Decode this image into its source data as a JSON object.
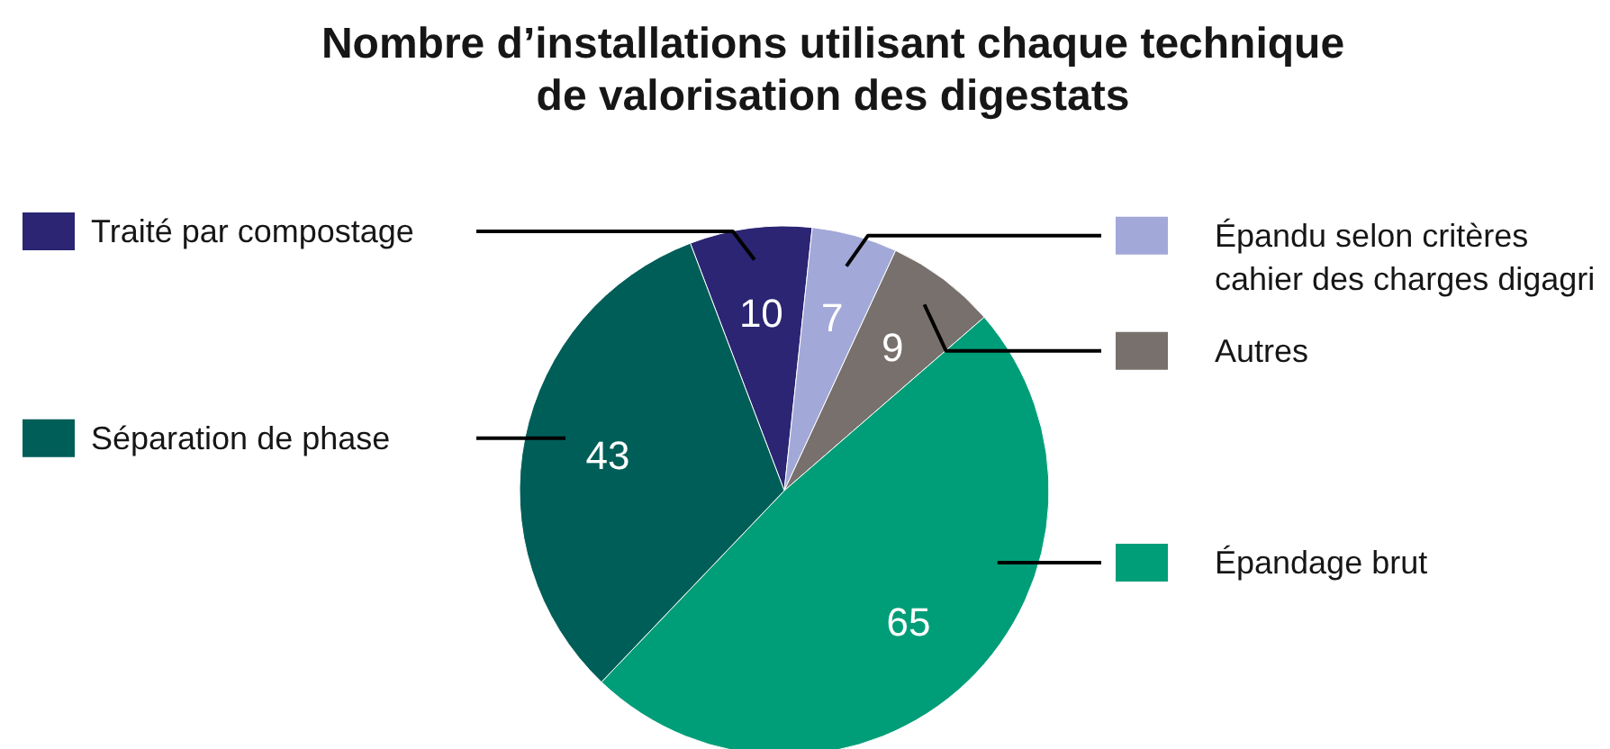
{
  "chart_data": {
    "type": "pie",
    "title": "Nombre d’installations utilisant chaque technique de valorisation des digestats",
    "categories": [
      "Traité par compostage",
      "Épandu selon critères cahier des charges digagri",
      "Autres",
      "Épandage brut",
      "Séparation de phase"
    ],
    "values": [
      10,
      7,
      9,
      65,
      43
    ],
    "colors": [
      "#2b2573",
      "#a2a8d8",
      "#78706c",
      "#009e78",
      "#005e58"
    ],
    "data_labels": true,
    "legend": "right"
  }
}
